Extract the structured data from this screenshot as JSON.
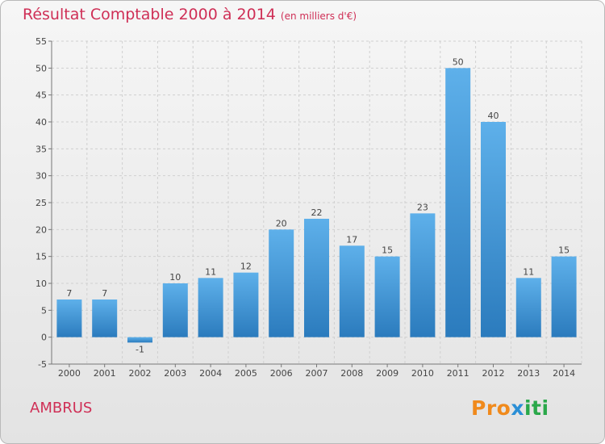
{
  "header": {
    "title": "Résultat Comptable 2000 à 2014",
    "unit": "(en milliers d'€)"
  },
  "footer": {
    "commune": "AMBRUS",
    "logo": "Proxiti"
  },
  "colors": {
    "title": "#cf2f56",
    "bar_top": "#5eb0ea",
    "bar_bottom": "#2b7bbd",
    "logo_orange": "#f08a1c",
    "logo_blue": "#2a8fd6",
    "logo_green": "#2aa84a"
  },
  "chart_data": {
    "type": "bar",
    "title": "Résultat Comptable 2000 à 2014",
    "subtitle": "(en milliers d'€)",
    "xlabel": "",
    "ylabel": "",
    "categories": [
      "2000",
      "2001",
      "2002",
      "2003",
      "2004",
      "2005",
      "2006",
      "2007",
      "2008",
      "2009",
      "2010",
      "2011",
      "2012",
      "2013",
      "2014"
    ],
    "values": [
      7,
      7,
      -1,
      10,
      11,
      12,
      20,
      22,
      17,
      15,
      23,
      50,
      40,
      11,
      15
    ],
    "data_labels": [
      "7",
      "7",
      "-1",
      "10",
      "11",
      "12",
      "20",
      "22",
      "17",
      "15",
      "23",
      "50",
      "40",
      "11",
      "15"
    ],
    "ylim": [
      -5,
      55
    ],
    "yticks": [
      -5,
      0,
      5,
      10,
      15,
      20,
      25,
      30,
      35,
      40,
      45,
      50,
      55
    ],
    "grid": true,
    "legend": "none"
  }
}
